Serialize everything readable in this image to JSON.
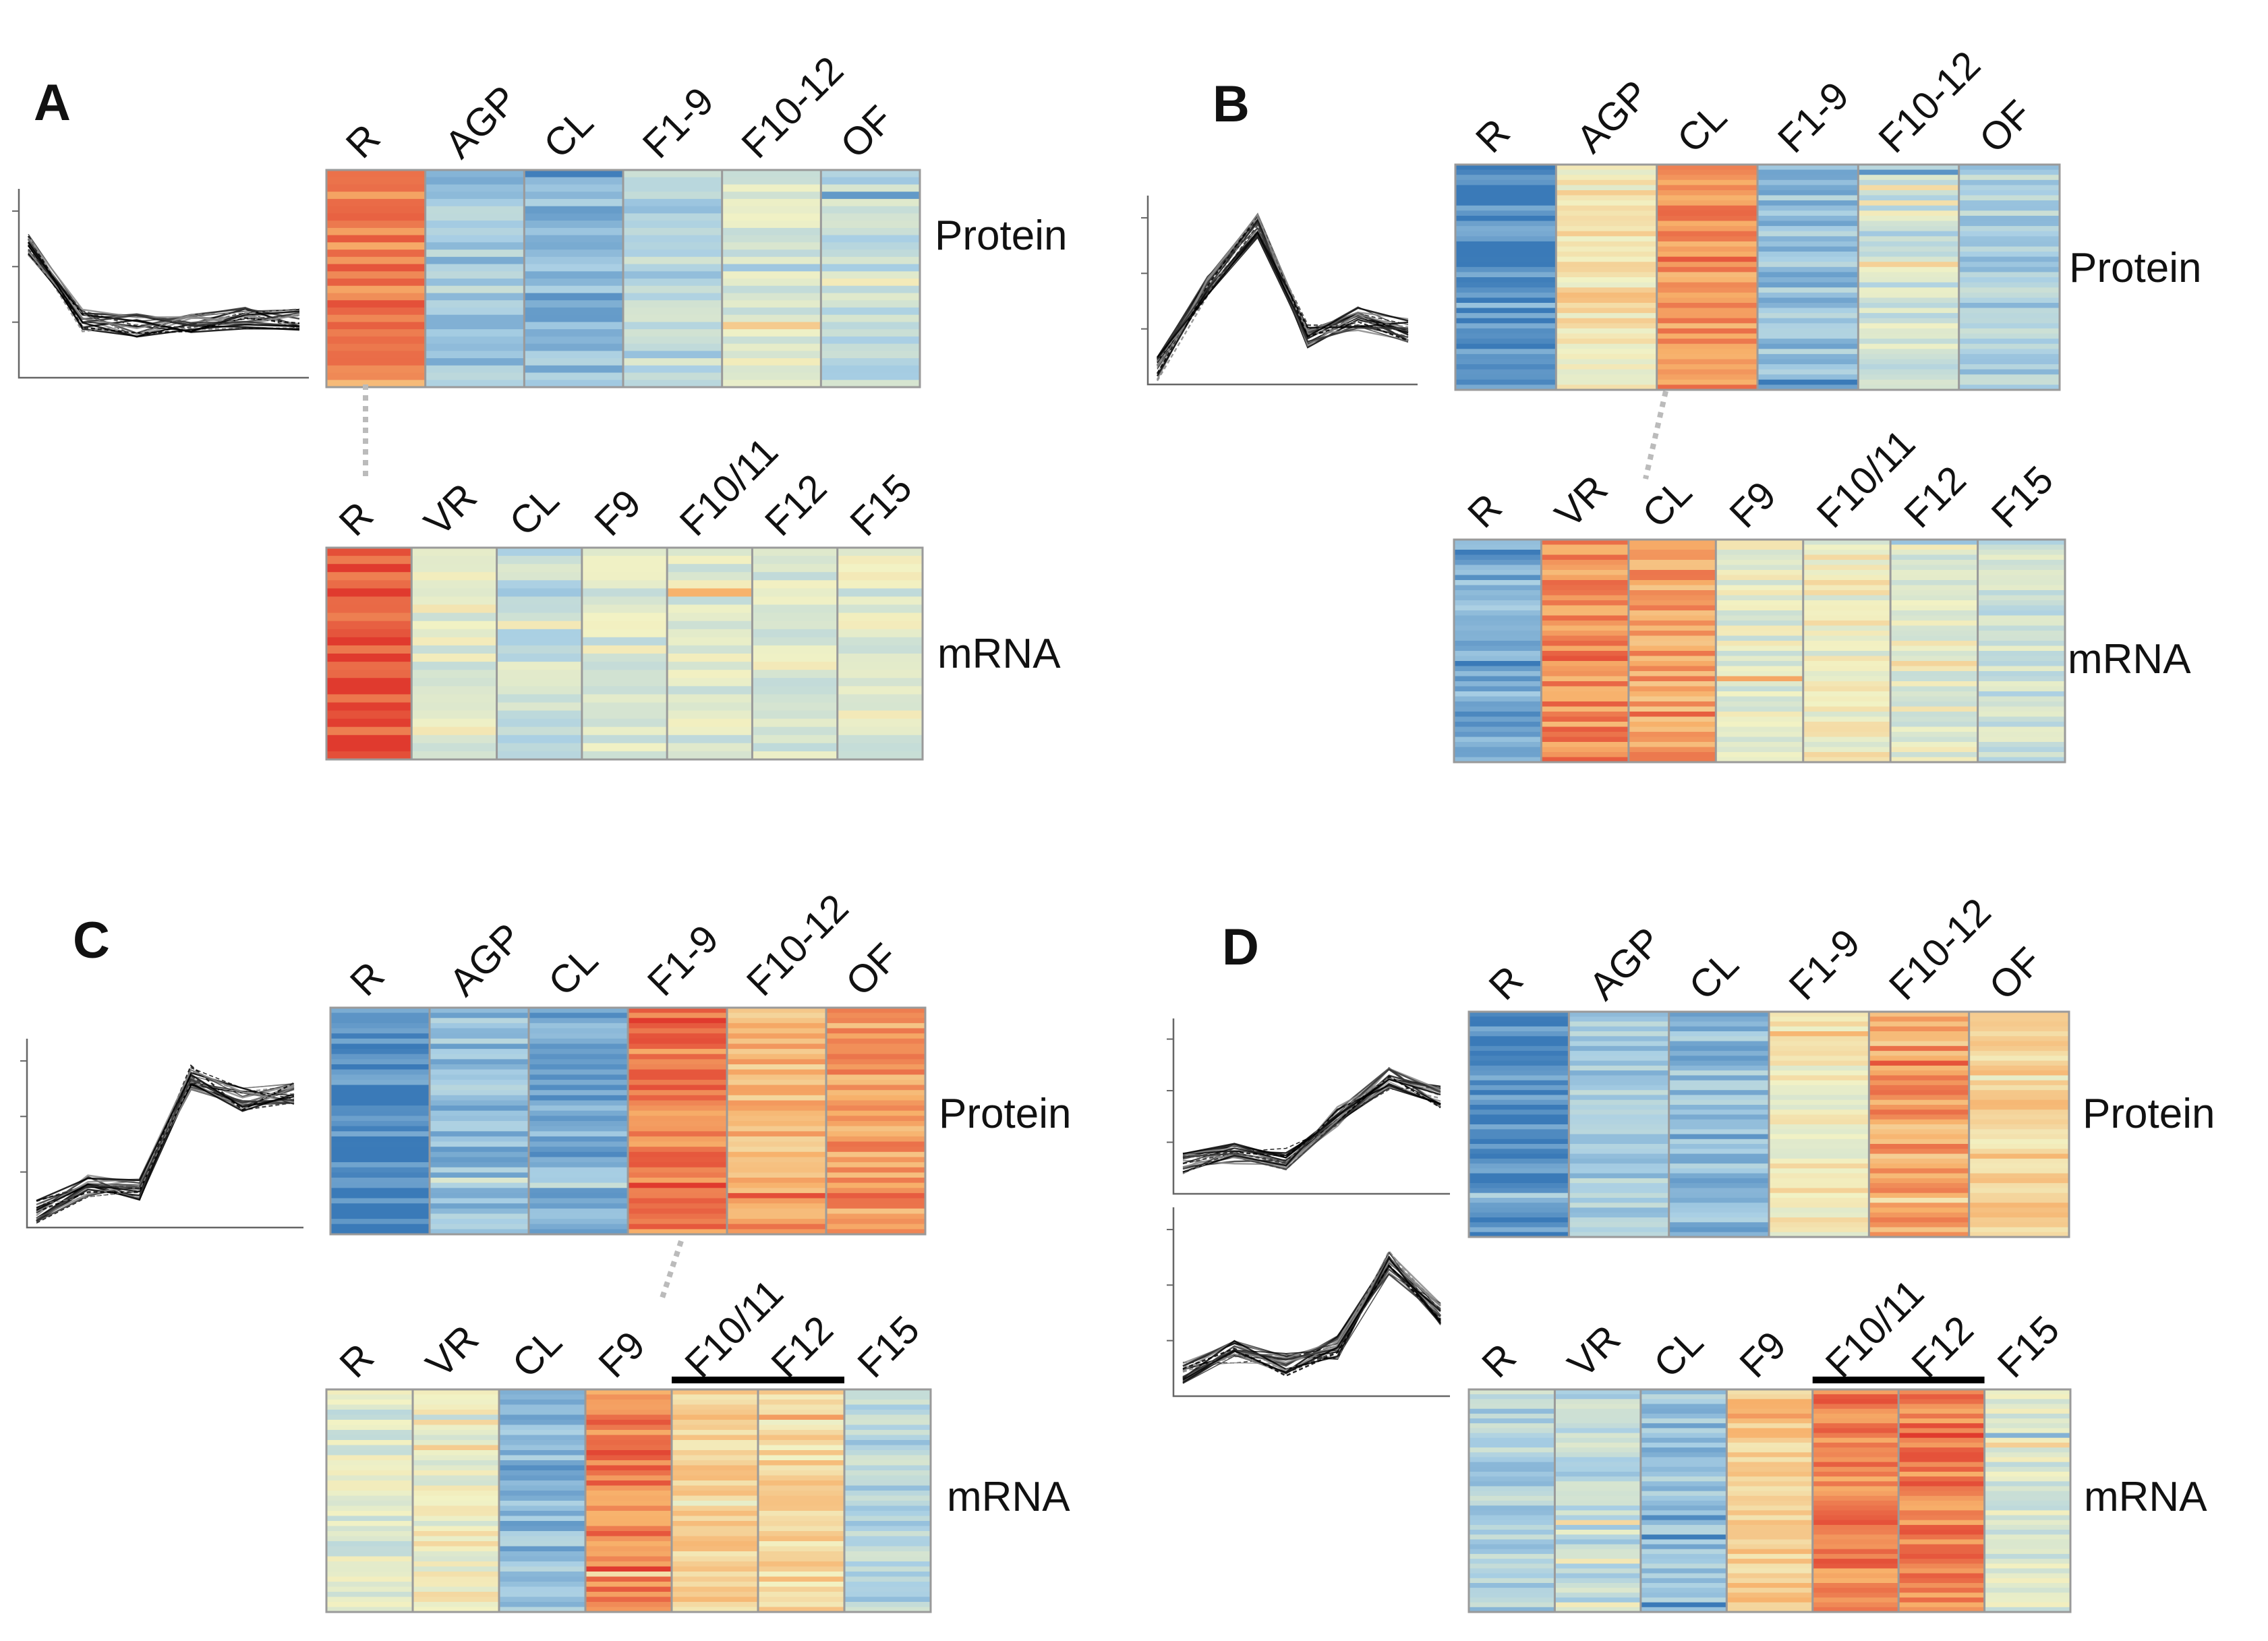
{
  "chart_data": [
    {
      "type": "heatmap",
      "panel": "A",
      "profile": "high in R, low elsewhere",
      "protein_columns": [
        "R",
        "AGP",
        "CL",
        "F1-9",
        "F10-12",
        "OF"
      ],
      "protein_label": "Protein",
      "protein_levels": [
        0.85,
        0.25,
        0.18,
        0.3,
        0.42,
        0.33
      ],
      "mrna_columns": [
        "R",
        "VR",
        "CL",
        "F9",
        "F10/11",
        "F12",
        "F15"
      ],
      "mrna_label": "mRNA",
      "mrna_levels": [
        0.96,
        0.45,
        0.36,
        0.42,
        0.42,
        0.43,
        0.45
      ],
      "line_profile": [
        0.75,
        0.3,
        0.27,
        0.3,
        0.32,
        0.31
      ],
      "line_profile_2": null
    },
    {
      "type": "heatmap",
      "panel": "B",
      "profile": "high in AGP/CL",
      "protein_columns": [
        "R",
        "AGP",
        "CL",
        "F1-9",
        "F10-12",
        "OF"
      ],
      "protein_label": "Protein",
      "protein_levels": [
        0.05,
        0.55,
        0.8,
        0.22,
        0.38,
        0.28
      ],
      "mrna_columns": [
        "R",
        "VR",
        "CL",
        "F9",
        "F10/11",
        "F12",
        "F15"
      ],
      "mrna_label": "mRNA",
      "mrna_levels": [
        0.15,
        0.82,
        0.77,
        0.45,
        0.5,
        0.45,
        0.38
      ],
      "line_profile": [
        0.05,
        0.55,
        0.9,
        0.25,
        0.35,
        0.28
      ],
      "line_profile_2": null
    },
    {
      "type": "heatmap",
      "panel": "C",
      "profile": "high in fruit stages",
      "protein_columns": [
        "R",
        "AGP",
        "CL",
        "F1-9",
        "F10-12",
        "OF"
      ],
      "protein_label": "Protein",
      "protein_levels": [
        0.05,
        0.2,
        0.14,
        0.85,
        0.7,
        0.78
      ],
      "mrna_columns": [
        "R",
        "VR",
        "CL",
        "F9",
        "F10/11",
        "F12",
        "F15"
      ],
      "mrna_label": "mRNA",
      "mrna_levels": [
        0.42,
        0.5,
        0.2,
        0.85,
        0.62,
        0.6,
        0.3
      ],
      "line_profile": [
        0.05,
        0.2,
        0.18,
        0.85,
        0.72,
        0.75
      ],
      "line_profile_2": null,
      "mrna_bar": [
        4,
        5
      ]
    },
    {
      "type": "heatmap",
      "panel": "D",
      "profile": "high in F10-12",
      "protein_columns": [
        "R",
        "AGP",
        "CL",
        "F1-9",
        "F10-12",
        "OF"
      ],
      "protein_label": "Protein",
      "protein_levels": [
        0.06,
        0.26,
        0.2,
        0.52,
        0.78,
        0.62
      ],
      "mrna_columns": [
        "R",
        "VR",
        "CL",
        "F9",
        "F10/11",
        "F12",
        "F15"
      ],
      "mrna_label": "mRNA",
      "mrna_levels": [
        0.28,
        0.32,
        0.22,
        0.65,
        0.85,
        0.85,
        0.42
      ],
      "line_profile": [
        0.15,
        0.22,
        0.18,
        0.45,
        0.7,
        0.58
      ],
      "line_profile_2": [
        0.1,
        0.22,
        0.15,
        0.25,
        0.75,
        0.45
      ],
      "mrna_bar": [
        4,
        5
      ]
    }
  ],
  "colors": {
    "low": "#3a7ab8",
    "mid_low": "#a9cfe4",
    "mid": "#f2f2c4",
    "mid_high": "#f7b06a",
    "high": "#e03a2e"
  }
}
